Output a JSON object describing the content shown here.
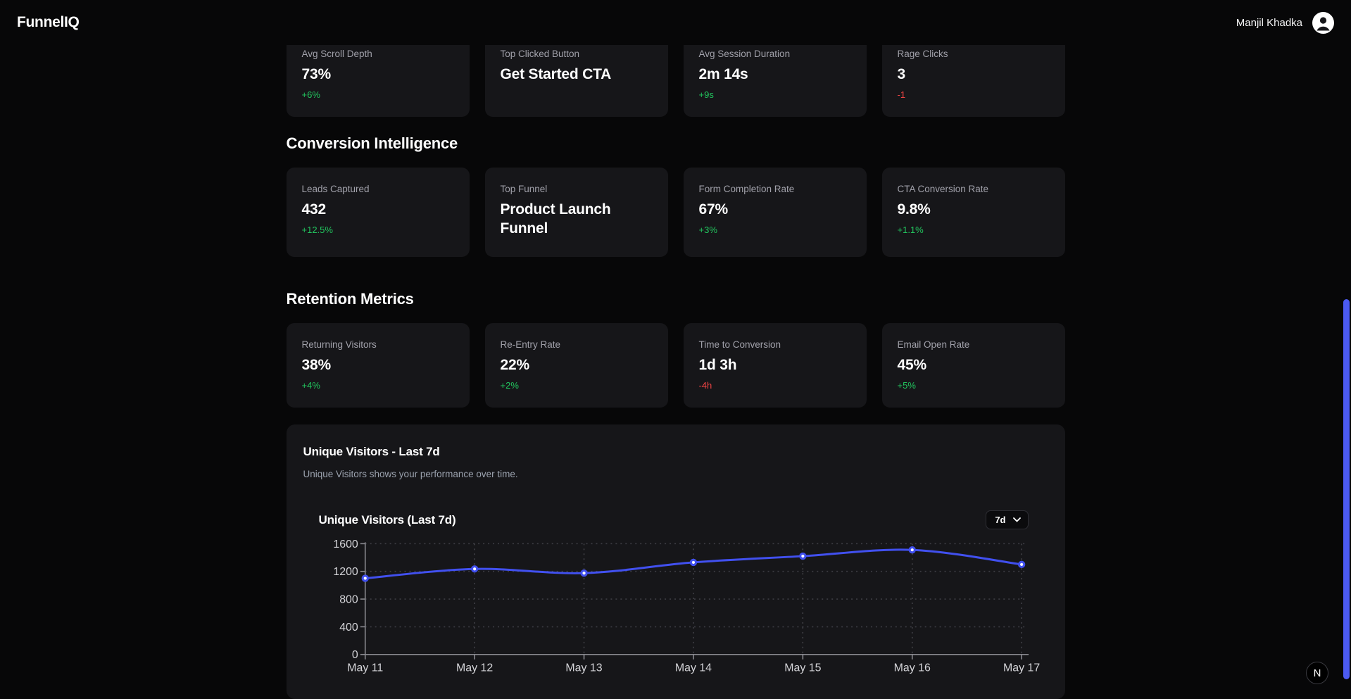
{
  "header": {
    "brand": "FunnelIQ",
    "user_name": "Manjil Khadka"
  },
  "icons": {
    "avatar": "user-icon",
    "select_chevron": "chevron-down-icon"
  },
  "sections": [
    {
      "cards": [
        {
          "label": "Avg Scroll Depth",
          "value": "73%",
          "delta": "+6%",
          "tone": "pos"
        },
        {
          "label": "Top Clicked Button",
          "value": "Get Started CTA",
          "delta": "",
          "tone": ""
        },
        {
          "label": "Avg Session Duration",
          "value": "2m 14s",
          "delta": "+9s",
          "tone": "pos"
        },
        {
          "label": "Rage Clicks",
          "value": "3",
          "delta": "-1",
          "tone": "neg"
        }
      ]
    },
    {
      "heading": "Conversion Intelligence",
      "cards": [
        {
          "label": "Leads Captured",
          "value": "432",
          "delta": "+12.5%",
          "tone": "pos"
        },
        {
          "label": "Top Funnel",
          "value": "Product Launch Funnel",
          "delta": "",
          "tone": ""
        },
        {
          "label": "Form Completion Rate",
          "value": "67%",
          "delta": "+3%",
          "tone": "pos"
        },
        {
          "label": "CTA Conversion Rate",
          "value": "9.8%",
          "delta": "+1.1%",
          "tone": "pos"
        }
      ]
    },
    {
      "heading": "Retention Metrics",
      "cards": [
        {
          "label": "Returning Visitors",
          "value": "38%",
          "delta": "+4%",
          "tone": "pos"
        },
        {
          "label": "Re-Entry Rate",
          "value": "22%",
          "delta": "+2%",
          "tone": "pos"
        },
        {
          "label": "Time to Conversion",
          "value": "1d 3h",
          "delta": "-4h",
          "tone": "neg"
        },
        {
          "label": "Email Open Rate",
          "value": "45%",
          "delta": "+5%",
          "tone": "pos"
        }
      ]
    }
  ],
  "chart_card": {
    "title": "Unique Visitors - Last 7d",
    "subtitle": "Unique Visitors shows your performance over time.",
    "inner_title": "Unique Visitors (Last 7d)",
    "range_value": "7d"
  },
  "chart_data": {
    "type": "line",
    "title": "Unique Visitors (Last 7d)",
    "x": [
      "May 11",
      "May 12",
      "May 13",
      "May 14",
      "May 15",
      "May 16",
      "May 17"
    ],
    "series": [
      {
        "name": "Unique Visitors",
        "values": [
          1100,
          1235,
          1175,
          1330,
          1420,
          1510,
          1300
        ]
      }
    ],
    "ylim": [
      0,
      1600
    ],
    "yticks": [
      0,
      400,
      800,
      1200,
      1600
    ],
    "grid": "dashed",
    "legend": "none",
    "line_color": "#4150ef",
    "point_fill": "#ffffff",
    "axis_color": "#8a8a90",
    "tick_label_color": "#d4d4d8"
  },
  "overlays": {
    "dev_badge": "N"
  },
  "colors": {
    "page_bg": "#070708",
    "card_bg": "#161619",
    "positive": "#22c55e",
    "negative": "#ef4444",
    "scrollbar": "#4b5af2"
  }
}
